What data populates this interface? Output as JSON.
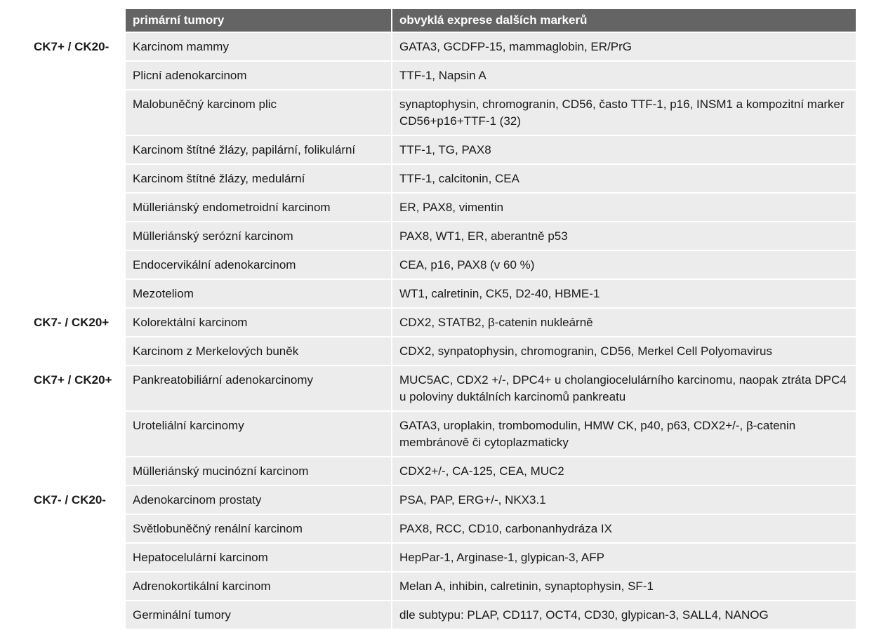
{
  "header": {
    "col1": "",
    "col2": "primární tumory",
    "col3": "obvyklá exprese dalších markerů"
  },
  "rows": [
    {
      "group": "CK7+ / CK20-",
      "tumor": "Karcinom mammy",
      "markers": "GATA3, GCDFP-15, mammaglobin, ER/PrG"
    },
    {
      "group": "",
      "tumor": "Plicní adenokarcinom",
      "markers": "TTF-1, Napsin A"
    },
    {
      "group": "",
      "tumor": "Malobuněčný karcinom plic",
      "markers": "synaptophysin, chromogranin, CD56, často TTF-1, p16, INSM1 a kompozitní marker CD56+p16+TTF-1 (32)"
    },
    {
      "group": "",
      "tumor": "Karcinom štítné žlázy, papilární, folikulární",
      "markers": "TTF-1, TG, PAX8"
    },
    {
      "group": "",
      "tumor": "Karcinom štítné žlázy, medulární",
      "markers": "TTF-1, calcitonin, CEA"
    },
    {
      "group": "",
      "tumor": "Mülleriánský endometroidní karcinom",
      "markers": "ER, PAX8, vimentin"
    },
    {
      "group": "",
      "tumor": "Mülleriánský serózní karcinom",
      "markers": "PAX8, WT1, ER, aberantně p53"
    },
    {
      "group": "",
      "tumor": "Endocervikální adenokarcinom",
      "markers": "CEA, p16, PAX8 (v 60 %)"
    },
    {
      "group": "",
      "tumor": "Mezoteliom",
      "markers": "WT1, calretinin, CK5, D2-40, HBME-1"
    },
    {
      "group": "CK7- / CK20+",
      "tumor": "Kolorektální karcinom",
      "markers": "CDX2, STATB2, β-catenin nukleárně"
    },
    {
      "group": "",
      "tumor": "Karcinom z Merkelových buněk",
      "markers": "CDX2, synpatophysin, chromogranin, CD56, Merkel Cell Polyomavirus"
    },
    {
      "group": "CK7+ / CK20+",
      "tumor": "Pankreatobiliární adenokarcinomy",
      "markers": "MUC5AC, CDX2 +/-, DPC4+ u cholangiocelulárního karcinomu, naopak ztráta DPC4 u poloviny duktálních karcinomů pankreatu"
    },
    {
      "group": "",
      "tumor": "Uroteliální karcinomy",
      "markers": "GATA3, uroplakin, trombomodulin, HMW CK, p40, p63, CDX2+/-, β-catenin membránově či cytoplazmaticky"
    },
    {
      "group": "",
      "tumor": "Mülleriánský mucinózní karcinom",
      "markers": "CDX2+/-, CA-125, CEA, MUC2"
    },
    {
      "group": "CK7- / CK20-",
      "tumor": "Adenokarcinom prostaty",
      "markers": "PSA, PAP, ERG+/-, NKX3.1"
    },
    {
      "group": "",
      "tumor": "Světlobuněčný renální karcinom",
      "markers": "PAX8, RCC, CD10, carbonanhydráza IX"
    },
    {
      "group": "",
      "tumor": "Hepatocelulární karcinom",
      "markers": "HepPar-1, Arginase-1, glypican-3, AFP"
    },
    {
      "group": "",
      "tumor": "Adrenokortikální karcinom",
      "markers": "Melan A, inhibin, calretinin, synaptophysin, SF-1"
    },
    {
      "group": "",
      "tumor": "Germinální tumory",
      "markers": "dle subtypu: PLAP, CD117, OCT4, CD30, glypican-3, SALL4, NANOG"
    }
  ]
}
